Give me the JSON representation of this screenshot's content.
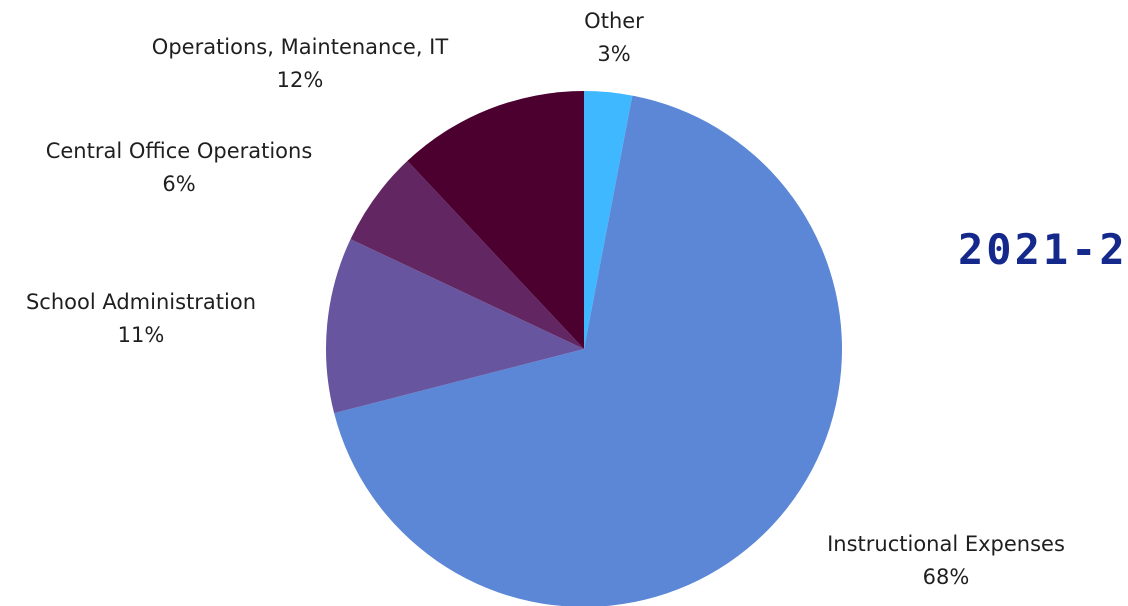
{
  "chart_data": {
    "type": "pie",
    "title": "2021-2",
    "start_angle_deg": 0,
    "direction": "clockwise",
    "slices": [
      {
        "label": "Other",
        "value": 3,
        "value_label": "3%",
        "color": "#40B8FF"
      },
      {
        "label": "Instructional Expenses",
        "value": 68,
        "value_label": "68%",
        "color": "#5B87D6"
      },
      {
        "label": "School Administration",
        "value": 11,
        "value_label": "11%",
        "color": "#67569F"
      },
      {
        "label": "Central Office Operations",
        "value": 6,
        "value_label": "6%",
        "color": "#622763"
      },
      {
        "label": "Operations, Maintenance, IT",
        "value": 12,
        "value_label": "12%",
        "color": "#4C0030"
      }
    ],
    "title_color": "#15298C"
  }
}
